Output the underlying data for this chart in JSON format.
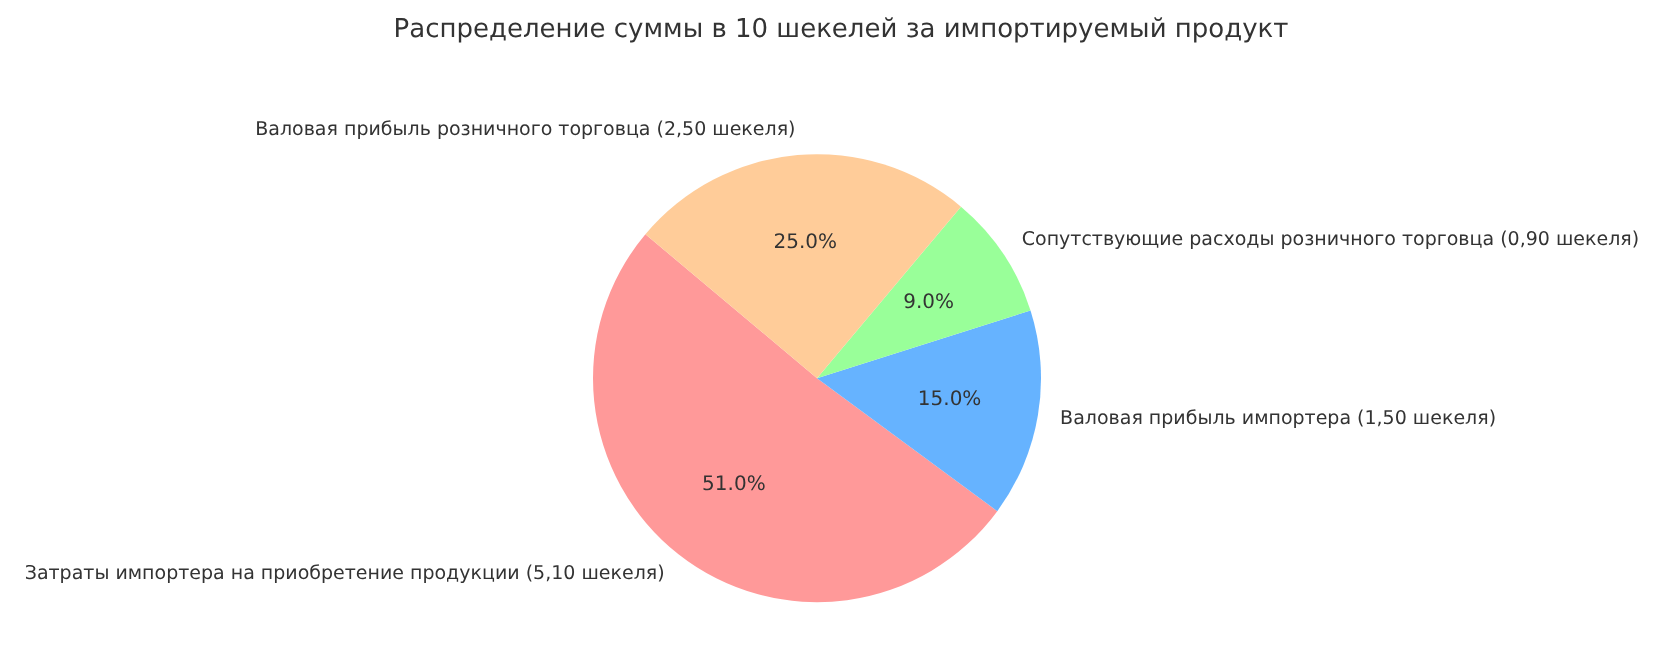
{
  "chart_data": {
    "type": "pie",
    "title": "Распределение суммы в 10 шекелей за импортируемый продукт",
    "categories": [
      "Затраты импортера на приобретение продукции (5,10 шекеля)",
      "Валовая прибыль импортера (1,50 шекеля)",
      "Сопутствующие расходы розничного торговца (0,90 шекеля)",
      "Валовая прибыль розничного торговца (2,50 шекеля)"
    ],
    "values": [
      51,
      15,
      9,
      25
    ],
    "value_labels": [
      "51.0%",
      "15.0%",
      "9.0%",
      "25.0%"
    ],
    "colors": [
      "#ff9999",
      "#66b3ff",
      "#99ff99",
      "#ffcc99"
    ]
  }
}
